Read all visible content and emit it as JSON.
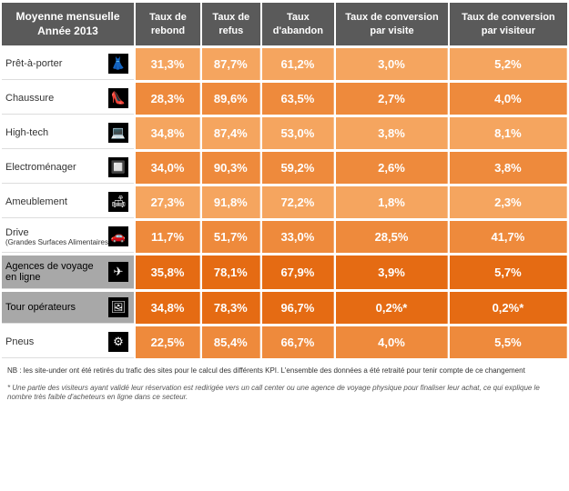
{
  "header": {
    "title_l1": "Moyenne mensuelle",
    "title_l2": "Année 2013",
    "cols": [
      "Taux de rebond",
      "Taux de refus",
      "Taux d'abandon",
      "Taux de conversion par visite",
      "Taux de conversion par visiteur"
    ]
  },
  "shades": {
    "light": "#f5a55f",
    "mid": "#ee8a3c",
    "dark": "#e56b13",
    "header_bg": "#5a5a5a",
    "cat_dark": "#a8a8a8"
  },
  "rows": [
    {
      "label": "Prêt-à-porter",
      "sub": "",
      "icon": "👗",
      "shade": "light",
      "cat": "plain",
      "vals": [
        "31,3%",
        "87,7%",
        "61,2%",
        "3,0%",
        "5,2%"
      ]
    },
    {
      "label": "Chaussure",
      "sub": "",
      "icon": "👠",
      "shade": "mid",
      "cat": "plain",
      "vals": [
        "28,3%",
        "89,6%",
        "63,5%",
        "2,7%",
        "4,0%"
      ]
    },
    {
      "label": "High-tech",
      "sub": "",
      "icon": "💻",
      "shade": "light",
      "cat": "plain",
      "vals": [
        "34,8%",
        "87,4%",
        "53,0%",
        "3,8%",
        "8,1%"
      ]
    },
    {
      "label": "Electroménager",
      "sub": "",
      "icon": "🔲",
      "shade": "mid",
      "cat": "plain",
      "vals": [
        "34,0%",
        "90,3%",
        "59,2%",
        "2,6%",
        "3,8%"
      ]
    },
    {
      "label": "Ameublement",
      "sub": "",
      "icon": "🛋",
      "shade": "light",
      "cat": "plain",
      "vals": [
        "27,3%",
        "91,8%",
        "72,2%",
        "1,8%",
        "2,3%"
      ]
    },
    {
      "label": "Drive",
      "sub": "(Grandes Surfaces Alimentaires)",
      "icon": "🚗",
      "shade": "mid",
      "cat": "plain",
      "vals": [
        "11,7%",
        "51,7%",
        "33,0%",
        "28,5%",
        "41,7%"
      ]
    },
    {
      "label": "Agences de voyage en ligne",
      "sub": "",
      "icon": "✈",
      "shade": "dark",
      "cat": "dark",
      "vals": [
        "35,8%",
        "78,1%",
        "67,9%",
        "3,9%",
        "5,7%"
      ]
    },
    {
      "label": "Tour opérateurs",
      "sub": "",
      "icon": "🖼",
      "shade": "dark",
      "cat": "dark",
      "vals": [
        "34,8%",
        "78,3%",
        "96,7%",
        "0,2%*",
        "0,2%*"
      ]
    },
    {
      "label": "Pneus",
      "sub": "",
      "icon": "⚙",
      "shade": "mid",
      "cat": "plain",
      "vals": [
        "22,5%",
        "85,4%",
        "66,7%",
        "4,0%",
        "5,5%"
      ]
    }
  ],
  "footnotes": {
    "nb": "NB : les site-under ont été retirés du trafic des sites pour le calcul des différents KPI. L'ensemble des données a été retraité pour tenir compte de ce changement",
    "asterisk": "* Une partie des visiteurs ayant validé leur réservation est redirigée vers un call center ou une agence de voyage physique pour finaliser leur achat, ce qui explique le nombre très faible d'acheteurs en ligne dans ce secteur."
  }
}
